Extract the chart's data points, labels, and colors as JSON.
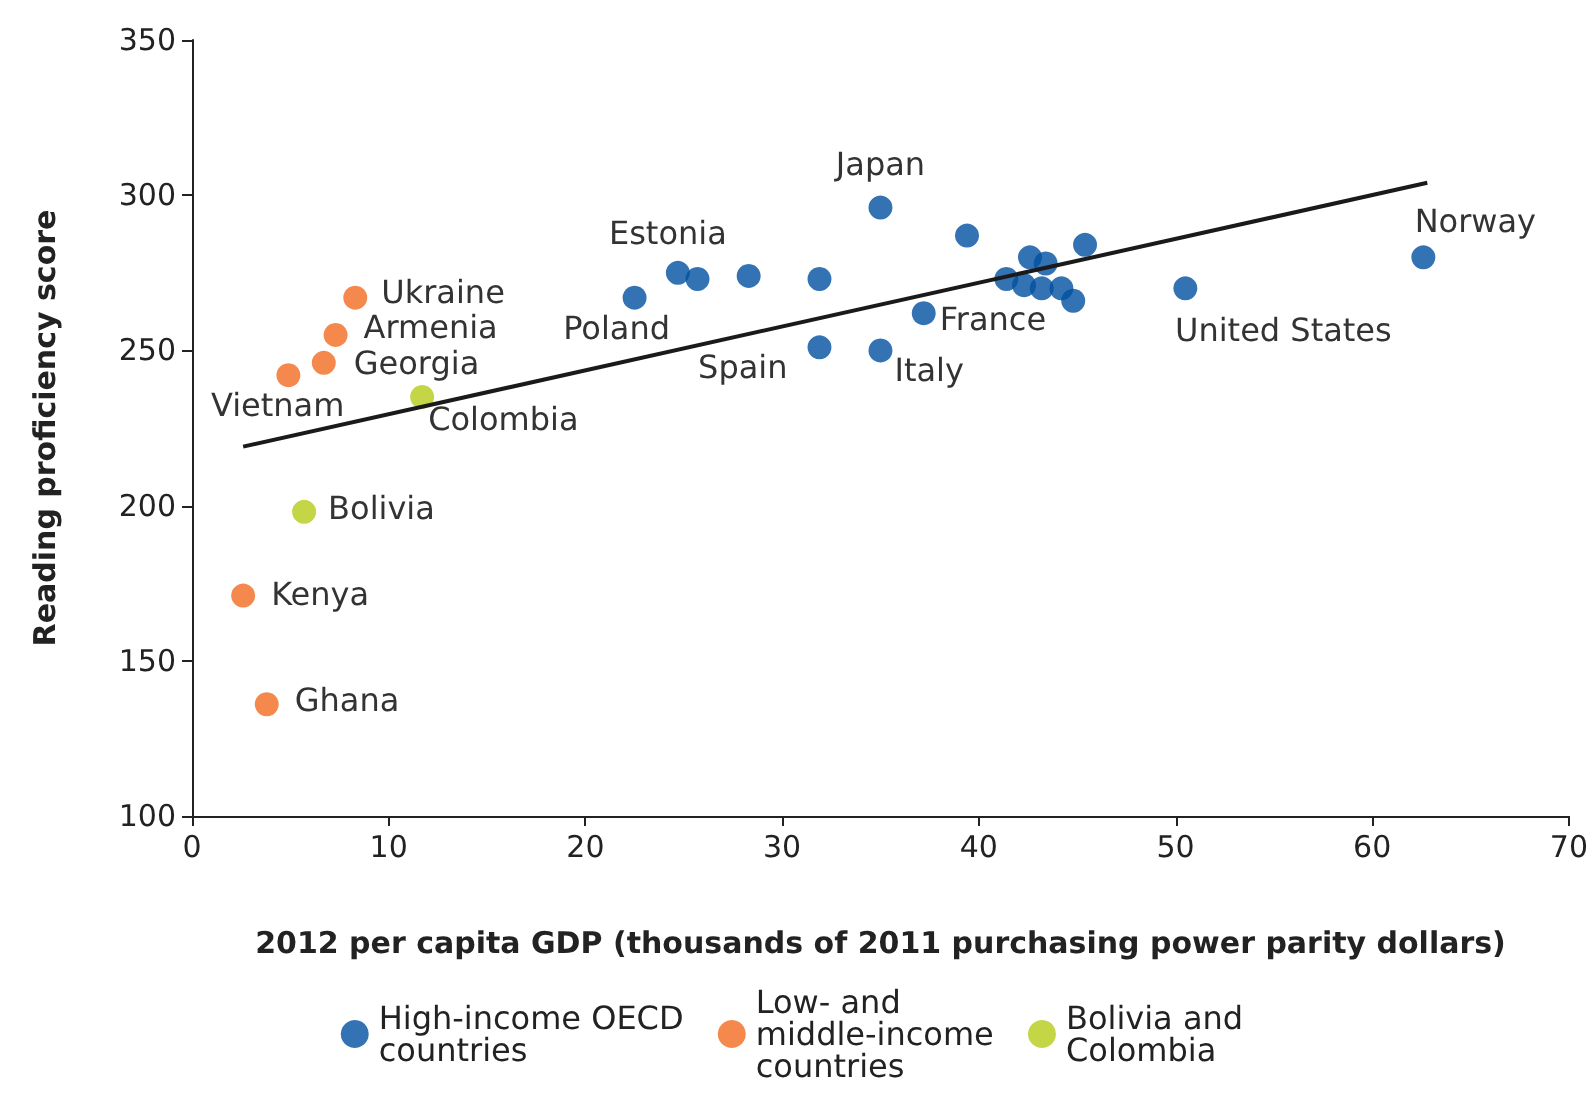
{
  "chart_data": {
    "type": "scatter",
    "xlabel": "2012 per capita GDP (thousands of 2011 purchasing power parity dollars)",
    "ylabel": "Reading proficiency score",
    "xlim": [
      0,
      70
    ],
    "xticks": [
      0,
      10,
      20,
      30,
      40,
      50,
      60,
      70
    ],
    "ylim": [
      100,
      350
    ],
    "yticks": [
      100,
      150,
      200,
      250,
      300,
      350
    ],
    "grid": false,
    "legend": "bottom",
    "marker": "circle",
    "series": [
      {
        "name": "High-income OECD countries",
        "color": "#0050a0",
        "x": [
          22.5,
          24.7,
          25.7,
          28.3,
          31.9,
          35.0,
          39.4,
          41.4,
          42.6,
          43.4,
          45.4,
          42.3,
          43.2,
          44.2,
          44.8,
          37.2,
          31.9,
          35.0,
          50.5,
          62.6
        ],
        "values": [
          267,
          275,
          273,
          274,
          273,
          296,
          287,
          273,
          280,
          278,
          284,
          271,
          270,
          270,
          266,
          262,
          251,
          250,
          270,
          280
        ]
      },
      {
        "name": "Low- and middle-income countries",
        "color": "#f26a21",
        "x": [
          8.3,
          7.3,
          6.7,
          4.9,
          2.6,
          3.8
        ],
        "values": [
          267,
          255,
          246,
          242,
          171,
          136
        ]
      },
      {
        "name": "Bolivia and Colombia",
        "color": "#b5cc18",
        "x": [
          11.7,
          5.7
        ],
        "values": [
          235,
          198
        ]
      },
      {
        "type": "line",
        "color": "#1a1a1a",
        "marker": "none",
        "x": [
          2.6,
          62.8
        ],
        "values": [
          219,
          304
        ]
      }
    ],
    "annotations": [
      {
        "text": "Japan",
        "x": 35.0,
        "y": 296
      },
      {
        "text": "Estonia",
        "x": 24.7,
        "y": 275
      },
      {
        "text": "Poland",
        "x": 22.5,
        "y": 267
      },
      {
        "text": "Norway",
        "x": 62.6,
        "y": 280
      },
      {
        "text": "United States",
        "x": 50.5,
        "y": 270
      },
      {
        "text": "France",
        "x": 37.2,
        "y": 262
      },
      {
        "text": "Spain",
        "x": 31.9,
        "y": 251
      },
      {
        "text": "Italy",
        "x": 35.0,
        "y": 250
      },
      {
        "text": "Ukraine",
        "x": 8.3,
        "y": 267
      },
      {
        "text": "Armenia",
        "x": 7.3,
        "y": 255
      },
      {
        "text": "Georgia",
        "x": 6.7,
        "y": 246
      },
      {
        "text": "Vietnam",
        "x": 4.9,
        "y": 242
      },
      {
        "text": "Colombia",
        "x": 11.7,
        "y": 235
      },
      {
        "text": "Bolivia",
        "x": 5.7,
        "y": 198
      },
      {
        "text": "Kenya",
        "x": 2.6,
        "y": 171
      },
      {
        "text": "Ghana",
        "x": 3.8,
        "y": 136
      }
    ]
  }
}
